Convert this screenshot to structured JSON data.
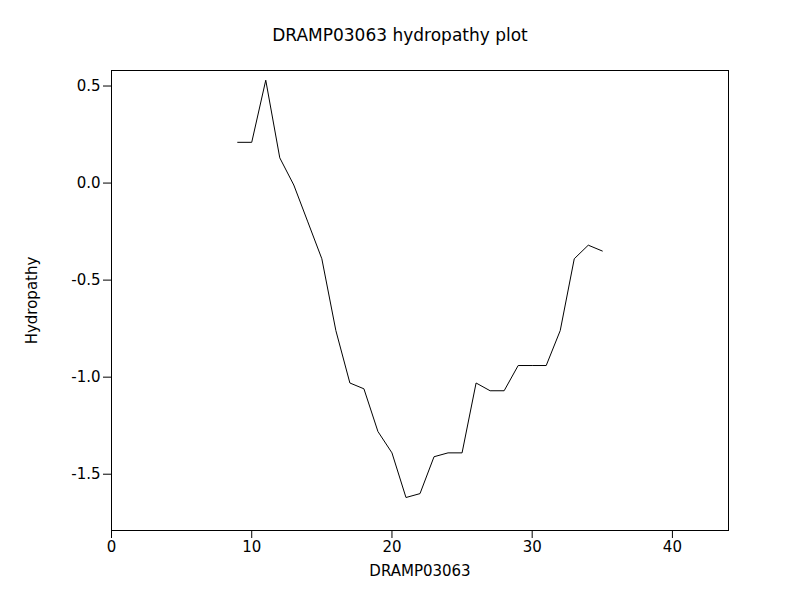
{
  "chart_data": {
    "type": "line",
    "title": "DRAMP03063 hydropathy plot",
    "x_label": "DRAMP03063",
    "y_label": "Hydropathy",
    "x": [
      9,
      10,
      11,
      12,
      13,
      14,
      15,
      16,
      17,
      18,
      19,
      20,
      21,
      22,
      23,
      24,
      25,
      26,
      27,
      28,
      29,
      30,
      31,
      32,
      33,
      34,
      35
    ],
    "values": [
      0.21,
      0.21,
      0.53,
      0.13,
      -0.01,
      -0.2,
      -0.39,
      -0.76,
      -1.03,
      -1.06,
      -1.28,
      -1.39,
      -1.62,
      -1.6,
      -1.41,
      -1.39,
      -1.39,
      -1.03,
      -1.07,
      -1.07,
      -0.94,
      -0.94,
      -0.94,
      -0.76,
      -0.39,
      -0.32,
      -0.35
    ],
    "color": "#000000",
    "xlim": [
      0,
      44
    ],
    "xticks": [
      0,
      10,
      20,
      30,
      40
    ],
    "ylim": [
      -1.79,
      0.58
    ],
    "yticks": [
      {
        "value": -1.5,
        "label": "-1.5"
      },
      {
        "value": -1,
        "label": "-1.0"
      },
      {
        "value": -0.5,
        "label": "-0.5"
      },
      {
        "value": 0,
        "label": "0.0"
      },
      0.5
    ],
    "grid": false
  }
}
